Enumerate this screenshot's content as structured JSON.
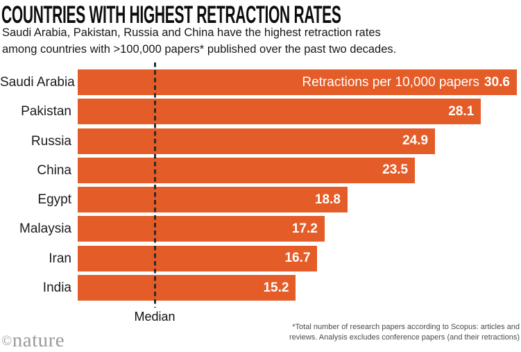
{
  "header": {
    "title": "COUNTRIES WITH HIGHEST RETRACTION RATES",
    "subtitle_line1": "Saudi Arabia, Pakistan, Russia and China have the highest retraction rates",
    "subtitle_line2": "among countries with >100,000 papers* published over the past two decades."
  },
  "chart_data": {
    "type": "bar",
    "orientation": "horizontal",
    "categories": [
      "Saudi Arabia",
      "Pakistan",
      "Russia",
      "China",
      "Egypt",
      "Malaysia",
      "Iran",
      "India"
    ],
    "values": [
      30.6,
      28.1,
      24.9,
      23.5,
      18.8,
      17.2,
      16.7,
      15.2
    ],
    "value_label_prefix": "Retractions per 10,000 papers",
    "xlabel": "",
    "ylabel": "",
    "xlim": [
      0,
      30.6
    ],
    "grid": false,
    "legend": "none",
    "median_label": "Median",
    "median_x_fraction_of_max": 0.175,
    "bar_color": "#E45C28",
    "value_text_color": "#FFFFFF"
  },
  "footer": {
    "footnote_line1": "*Total number of research papers according to Scopus: articles and",
    "footnote_line2": "reviews. Analysis excludes conference papers (and their retractions)",
    "logo_copyright": "©",
    "logo_text": "nature"
  }
}
